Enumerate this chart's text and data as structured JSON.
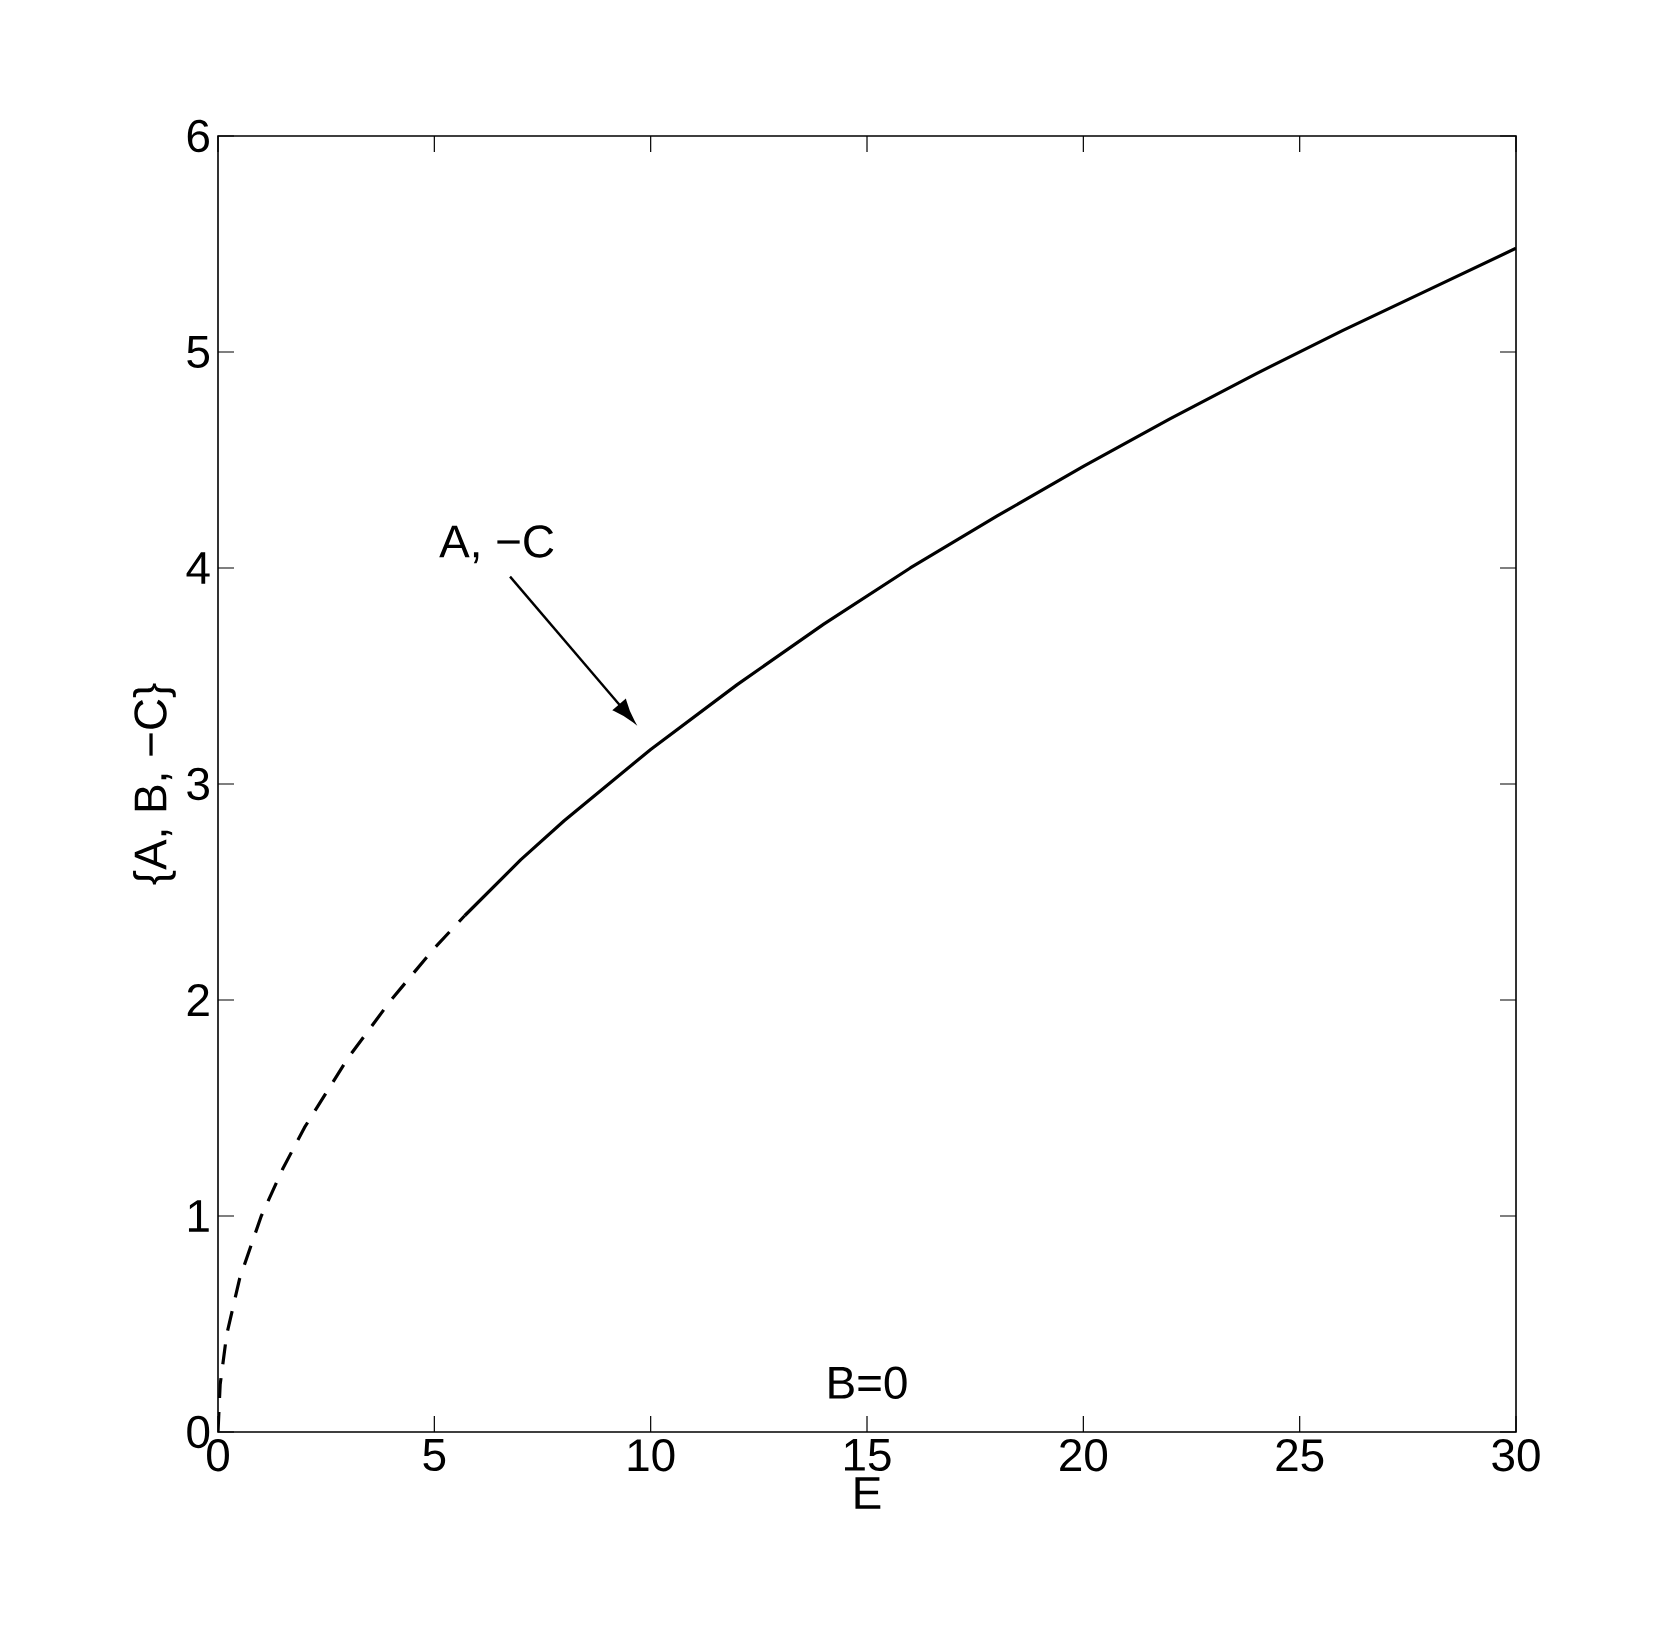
{
  "chart_data": {
    "type": "line",
    "xlabel": "E",
    "ylabel": "{A, B, −C}",
    "xlim": [
      0,
      30
    ],
    "ylim": [
      0,
      6
    ],
    "xticks": [
      0,
      5,
      10,
      15,
      20,
      25,
      30
    ],
    "yticks": [
      0,
      1,
      2,
      3,
      4,
      5,
      6
    ],
    "grid": false,
    "marker": "none",
    "series": [
      {
        "color": "#000000",
        "line_style": "dashed",
        "x": [
          0,
          0.05,
          0.2,
          0.5,
          1,
          1.5,
          2,
          3,
          4,
          5,
          5.7
        ],
        "values": [
          0,
          0.22,
          0.45,
          0.71,
          1,
          1.22,
          1.41,
          1.73,
          2,
          2.24,
          2.39
        ]
      },
      {
        "color": "#000000",
        "line_style": "solid",
        "x": [
          5.7,
          7,
          8,
          10,
          12,
          14,
          16,
          18,
          20,
          22,
          24,
          26,
          28,
          30
        ],
        "values": [
          2.39,
          2.65,
          2.83,
          3.16,
          3.46,
          3.74,
          4,
          4.24,
          4.47,
          4.69,
          4.9,
          5.1,
          5.29,
          5.48
        ]
      }
    ],
    "annotations": [
      "A, −C",
      "B=0"
    ]
  }
}
